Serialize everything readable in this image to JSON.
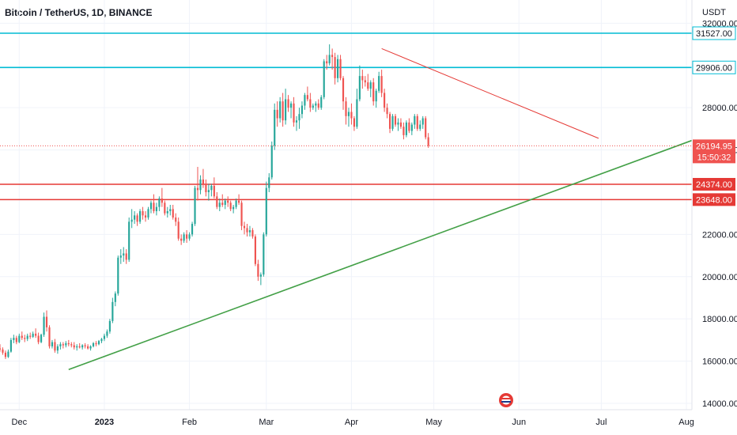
{
  "header": {
    "symbol": "Bitcoin / TetherUS, 1D, BINANCE"
  },
  "price_axis": {
    "unit": "USDT",
    "ticks": [
      {
        "value": 14000,
        "label": "14000.00"
      },
      {
        "value": 16000,
        "label": "16000.00"
      },
      {
        "value": 18000,
        "label": "18000.00"
      },
      {
        "value": 20000,
        "label": "20000.00"
      },
      {
        "value": 22000,
        "label": "22000.00"
      },
      {
        "value": 26000,
        "label": "26000.00"
      },
      {
        "value": 28000,
        "label": "28000.00"
      },
      {
        "value": 32000,
        "label": "32000.00"
      }
    ]
  },
  "time_axis": {
    "ticks": [
      {
        "date": "2022-12-01",
        "label": "Dec",
        "bold": false
      },
      {
        "date": "2023-01-01",
        "label": "2023",
        "bold": true
      },
      {
        "date": "2023-02-01",
        "label": "Feb",
        "bold": false
      },
      {
        "date": "2023-03-01",
        "label": "Mar",
        "bold": false
      },
      {
        "date": "2023-04-01",
        "label": "Apr",
        "bold": false
      },
      {
        "date": "2023-05-01",
        "label": "May",
        "bold": false
      },
      {
        "date": "2023-06-01",
        "label": "Jun",
        "bold": false
      },
      {
        "date": "2023-07-01",
        "label": "Jul",
        "bold": false
      },
      {
        "date": "2023-08-01",
        "label": "Aug",
        "bold": false
      }
    ]
  },
  "colors": {
    "up": "#26a69a",
    "down": "#ef5350",
    "teal_line": "#00bcd4",
    "red_line": "#e53935",
    "green_trend": "#43a047",
    "red_trend": "#ef5350",
    "grid": "#f0f3fa"
  },
  "chart_data": {
    "type": "candlestick",
    "title": "Bitcoin / TetherUS, 1D, BINANCE",
    "ylabel": "USDT",
    "y_range": [
      13700,
      33100
    ],
    "x_range": [
      "2022-11-24",
      "2023-08-03"
    ],
    "grid": true,
    "last_price": {
      "value": 26194.95,
      "label": "26194.95",
      "countdown": "15:50:32"
    },
    "horizontal_levels": [
      {
        "value": 31527,
        "label": "31527.00",
        "color": "teal"
      },
      {
        "value": 29906,
        "label": "29906.00",
        "color": "teal"
      },
      {
        "value": 24374,
        "label": "24374.00",
        "color": "red"
      },
      {
        "value": 23648,
        "label": "23648.00",
        "color": "red"
      }
    ],
    "trendlines": [
      {
        "name": "",
        "color": "green",
        "start": {
          "date": "2022-12-19",
          "value": 15600
        },
        "end": {
          "date": "2023-08-03",
          "value": 26450
        }
      },
      {
        "name": "",
        "color": "red",
        "start": {
          "date": "2023-04-12",
          "value": 30800
        },
        "end": {
          "date": "2023-06-30",
          "value": 26550
        }
      }
    ],
    "candles_per_day_start": "2022-11-24",
    "candles": [
      [
        16600,
        16800,
        16450,
        16550
      ],
      [
        16550,
        16650,
        16300,
        16400
      ],
      [
        16400,
        16500,
        16100,
        16200
      ],
      [
        16200,
        16550,
        16150,
        16450
      ],
      [
        16450,
        17100,
        16400,
        17000
      ],
      [
        17000,
        17250,
        16850,
        17100
      ],
      [
        17100,
        17200,
        16800,
        16900
      ],
      [
        16900,
        17300,
        16850,
        17200
      ],
      [
        17200,
        17400,
        17000,
        17100
      ],
      [
        17100,
        17250,
        16900,
        17050
      ],
      [
        17050,
        17300,
        16950,
        17200
      ],
      [
        17200,
        17350,
        17050,
        17150
      ],
      [
        17150,
        17400,
        17100,
        17300
      ],
      [
        17300,
        17550,
        17100,
        17200
      ],
      [
        17200,
        17350,
        16800,
        16900
      ],
      [
        16900,
        17300,
        16850,
        17250
      ],
      [
        17250,
        18300,
        17150,
        18100
      ],
      [
        18100,
        18400,
        17400,
        17600
      ],
      [
        17600,
        17700,
        16600,
        16700
      ],
      [
        16700,
        17000,
        16600,
        16900
      ],
      [
        16900,
        17050,
        16400,
        16500
      ],
      [
        16500,
        16800,
        16350,
        16700
      ],
      [
        16700,
        16900,
        16550,
        16800
      ],
      [
        16800,
        16900,
        16600,
        16750
      ],
      [
        16750,
        16950,
        16650,
        16850
      ],
      [
        16850,
        17000,
        16700,
        16800
      ],
      [
        16800,
        16900,
        16650,
        16750
      ],
      [
        16750,
        16900,
        16550,
        16650
      ],
      [
        16650,
        16800,
        16500,
        16700
      ],
      [
        16700,
        16850,
        16600,
        16650
      ],
      [
        16650,
        16800,
        16550,
        16750
      ],
      [
        16750,
        16850,
        16600,
        16700
      ],
      [
        16700,
        16800,
        16550,
        16600
      ],
      [
        16600,
        16750,
        16500,
        16700
      ],
      [
        16700,
        16900,
        16650,
        16850
      ],
      [
        16850,
        16950,
        16700,
        16800
      ],
      [
        16800,
        17000,
        16750,
        16950
      ],
      [
        16950,
        17100,
        16850,
        17050
      ],
      [
        17050,
        17300,
        16950,
        17200
      ],
      [
        17200,
        17500,
        17100,
        17400
      ],
      [
        17400,
        18000,
        17300,
        17900
      ],
      [
        17900,
        19000,
        17800,
        18800
      ],
      [
        18800,
        19300,
        18600,
        19200
      ],
      [
        19200,
        21000,
        19100,
        20900
      ],
      [
        20900,
        21300,
        20600,
        21000
      ],
      [
        21000,
        21400,
        20700,
        21100
      ],
      [
        21100,
        21300,
        20600,
        20800
      ],
      [
        20800,
        22800,
        20700,
        22600
      ],
      [
        22600,
        23200,
        22300,
        22700
      ],
      [
        22700,
        23100,
        22500,
        22900
      ],
      [
        22900,
        23000,
        22400,
        22600
      ],
      [
        22600,
        23200,
        22500,
        23100
      ],
      [
        23100,
        23300,
        22700,
        22900
      ],
      [
        22900,
        23100,
        22600,
        22800
      ],
      [
        22800,
        23300,
        22700,
        23200
      ],
      [
        23200,
        23600,
        23000,
        23500
      ],
      [
        23500,
        23900,
        23000,
        23100
      ],
      [
        23100,
        23500,
        22900,
        23300
      ],
      [
        23300,
        23800,
        23100,
        23700
      ],
      [
        23700,
        24200,
        23300,
        23500
      ],
      [
        23500,
        23600,
        22900,
        23000
      ],
      [
        23000,
        23300,
        22800,
        23100
      ],
      [
        23100,
        23400,
        22900,
        23200
      ],
      [
        23200,
        23400,
        22700,
        22800
      ],
      [
        22800,
        23000,
        22400,
        22600
      ],
      [
        22600,
        22800,
        21700,
        21800
      ],
      [
        21800,
        22000,
        21500,
        21700
      ],
      [
        21700,
        22100,
        21600,
        22000
      ],
      [
        22000,
        22200,
        21600,
        21800
      ],
      [
        21800,
        22100,
        21700,
        22000
      ],
      [
        22000,
        22600,
        21900,
        22500
      ],
      [
        22500,
        24300,
        22400,
        24200
      ],
      [
        24200,
        25200,
        23600,
        24100
      ],
      [
        24100,
        24800,
        23900,
        24600
      ],
      [
        24600,
        25100,
        24200,
        24400
      ],
      [
        24400,
        24600,
        23800,
        24000
      ],
      [
        24000,
        24400,
        23600,
        24100
      ],
      [
        24100,
        24400,
        23800,
        24300
      ],
      [
        24300,
        24700,
        23700,
        23800
      ],
      [
        23800,
        24000,
        23200,
        23300
      ],
      [
        23300,
        23700,
        23100,
        23500
      ],
      [
        23500,
        23900,
        23300,
        23400
      ],
      [
        23400,
        23700,
        23200,
        23600
      ],
      [
        23600,
        23800,
        23300,
        23500
      ],
      [
        23500,
        23600,
        23100,
        23200
      ],
      [
        23200,
        23400,
        23000,
        23300
      ],
      [
        23300,
        23700,
        23200,
        23600
      ],
      [
        23600,
        23900,
        23400,
        23500
      ],
      [
        23500,
        23600,
        22200,
        22400
      ],
      [
        22400,
        22600,
        22000,
        22300
      ],
      [
        22300,
        22500,
        21900,
        22100
      ],
      [
        22100,
        22400,
        21900,
        22200
      ],
      [
        22200,
        22300,
        21800,
        21900
      ],
      [
        21900,
        22000,
        20500,
        20600
      ],
      [
        20600,
        20800,
        19800,
        20000
      ],
      [
        20000,
        20200,
        19600,
        20100
      ],
      [
        20100,
        22100,
        20000,
        22000
      ],
      [
        22000,
        24500,
        21900,
        24200
      ],
      [
        24200,
        24900,
        24000,
        24700
      ],
      [
        24700,
        26400,
        24600,
        26200
      ],
      [
        26200,
        28200,
        26000,
        27900
      ],
      [
        27900,
        28300,
        27100,
        27500
      ],
      [
        27500,
        28500,
        27300,
        28300
      ],
      [
        28300,
        28700,
        27100,
        27400
      ],
      [
        27400,
        28900,
        27200,
        28400
      ],
      [
        28400,
        28600,
        27800,
        28000
      ],
      [
        28000,
        28300,
        27500,
        28200
      ],
      [
        28200,
        28500,
        27100,
        27300
      ],
      [
        27300,
        27600,
        26900,
        27400
      ],
      [
        27400,
        28000,
        27000,
        27700
      ],
      [
        27700,
        28300,
        27500,
        28100
      ],
      [
        28100,
        28700,
        27900,
        28600
      ],
      [
        28600,
        29000,
        28300,
        28400
      ],
      [
        28400,
        28700,
        27800,
        28000
      ],
      [
        28000,
        28200,
        27900,
        28100
      ],
      [
        28100,
        28300,
        27800,
        28200
      ],
      [
        28200,
        28400,
        27900,
        28000
      ],
      [
        28000,
        28600,
        27900,
        28500
      ],
      [
        28500,
        30300,
        28400,
        30200
      ],
      [
        30200,
        30500,
        29800,
        30100
      ],
      [
        30100,
        31000,
        30000,
        30500
      ],
      [
        30500,
        30800,
        29800,
        30400
      ],
      [
        30400,
        30600,
        29100,
        29400
      ],
      [
        29400,
        30500,
        29200,
        30300
      ],
      [
        30300,
        30500,
        29300,
        29400
      ],
      [
        29400,
        29500,
        27900,
        28300
      ],
      [
        28300,
        28500,
        27200,
        27600
      ],
      [
        27600,
        28000,
        27100,
        27800
      ],
      [
        27800,
        28200,
        27200,
        27500
      ],
      [
        27500,
        27600,
        26900,
        27100
      ],
      [
        27100,
        28900,
        27000,
        28400
      ],
      [
        28400,
        30000,
        28300,
        29500
      ],
      [
        29500,
        29800,
        28900,
        29300
      ],
      [
        29300,
        29500,
        29000,
        29200
      ],
      [
        29200,
        29600,
        28800,
        28900
      ],
      [
        28900,
        29300,
        28500,
        29200
      ],
      [
        29200,
        29400,
        28100,
        28300
      ],
      [
        28300,
        28900,
        28000,
        28800
      ],
      [
        28800,
        29700,
        28700,
        29500
      ],
      [
        29500,
        29800,
        28500,
        28700
      ],
      [
        28700,
        28900,
        27800,
        28000
      ],
      [
        28000,
        28200,
        27500,
        27700
      ],
      [
        27700,
        27800,
        26800,
        27000
      ],
      [
        27000,
        27700,
        26900,
        27600
      ],
      [
        27600,
        27700,
        27100,
        27200
      ],
      [
        27200,
        27500,
        26900,
        27300
      ],
      [
        27300,
        27500,
        27000,
        27100
      ],
      [
        27100,
        27300,
        26500,
        26700
      ],
      [
        26700,
        27400,
        26600,
        27300
      ],
      [
        27300,
        27500,
        26800,
        26900
      ],
      [
        26900,
        27300,
        26700,
        27200
      ],
      [
        27200,
        27700,
        27000,
        27600
      ],
      [
        27600,
        27700,
        26900,
        27000
      ],
      [
        27000,
        27400,
        26900,
        27200
      ],
      [
        27200,
        27600,
        27000,
        27500
      ],
      [
        27500,
        27600,
        26500,
        26600
      ],
      [
        26600,
        26800,
        26100,
        26195
      ]
    ]
  }
}
